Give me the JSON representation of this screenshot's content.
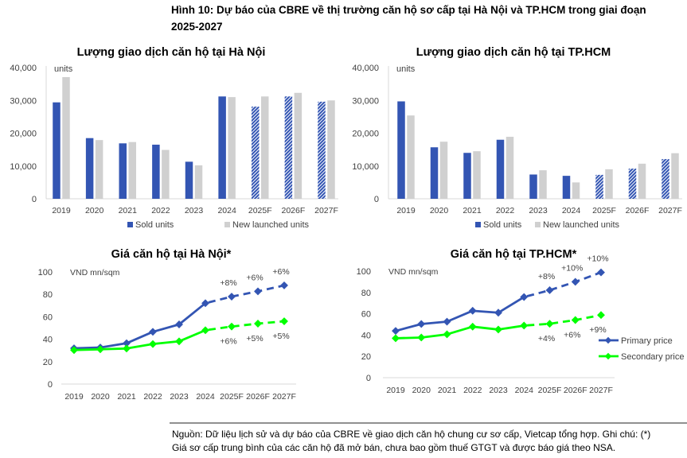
{
  "figure": {
    "title_line1": "Hình 10: Dự báo của CBRE về thị trường căn hộ sơ cấp tại Hà Nội và TP.HCM trong giai đoạn",
    "title_line2": "2025-2027",
    "source_line1": "Nguồn: Dữ liệu lịch sử và dự báo của CBRE về giao dịch căn hộ chung cư sơ cấp, Vietcap tổng hợp. Ghi chú: (*)",
    "source_line2": "Giá sơ cấp trung bình của các căn hộ đã mở bán, chưa bao gồm thuế GTGT và được báo giá theo NSA."
  },
  "colors": {
    "primary": "#3355b3",
    "secondary": "#00ff00",
    "launched": "#d0d0d0",
    "text": "#404040"
  },
  "chart_data": [
    {
      "type": "bar",
      "title": "Lượng giao dịch căn hộ tại Hà Nội",
      "unit_label": "units",
      "categories": [
        "2019",
        "2020",
        "2021",
        "2022",
        "2023",
        "2024",
        "2025F",
        "2026F",
        "2027F"
      ],
      "forecast_from": "2025F",
      "ylim": [
        0,
        40000
      ],
      "yticks": [
        "0",
        "10,000",
        "20,000",
        "30,000",
        "40,000"
      ],
      "legend_position": "bottom",
      "series": [
        {
          "name": "Sold units",
          "values": [
            29400,
            18500,
            16900,
            16500,
            11300,
            31200,
            28100,
            31200,
            29600
          ]
        },
        {
          "name": "New launched units",
          "values": [
            37100,
            17900,
            17300,
            14900,
            10200,
            31000,
            31200,
            32300,
            30000
          ]
        }
      ]
    },
    {
      "type": "bar",
      "title": "Lượng giao dịch căn hộ tại TP.HCM",
      "unit_label": "units",
      "categories": [
        "2019",
        "2020",
        "2021",
        "2022",
        "2023",
        "2024",
        "2025F",
        "2026F",
        "2027F"
      ],
      "forecast_from": "2025F",
      "ylim": [
        0,
        40000
      ],
      "yticks": [
        "0",
        "10,000",
        "20,000",
        "30,000",
        "40,000"
      ],
      "legend_position": "bottom",
      "series": [
        {
          "name": "Sold units",
          "values": [
            29700,
            15700,
            14000,
            18000,
            7400,
            7000,
            7300,
            9200,
            12100
          ]
        },
        {
          "name": "New launched units",
          "values": [
            25400,
            17400,
            14500,
            18900,
            8700,
            5000,
            9000,
            10700,
            13900
          ]
        }
      ]
    },
    {
      "type": "line",
      "title": "Giá căn hộ tại Hà Nội*",
      "unit_label": "VND mn/sqm",
      "categories": [
        "2019",
        "2020",
        "2021",
        "2022",
        "2023",
        "2024",
        "2025F",
        "2026F",
        "2027F"
      ],
      "forecast_from": "2024",
      "ylim": [
        0,
        100
      ],
      "yticks": [
        "0",
        "20",
        "40",
        "60",
        "80",
        "100"
      ],
      "series": [
        {
          "name": "Primary price",
          "values": [
            31.9,
            32.6,
            36.4,
            46.6,
            53.2,
            72.1,
            78.0,
            82.7,
            88.0
          ],
          "annotations": [
            "+8%",
            "+6%",
            "+6%"
          ]
        },
        {
          "name": "Secondary price",
          "values": [
            30.3,
            31.0,
            31.7,
            35.7,
            38.1,
            48.0,
            51.3,
            53.9,
            56.0
          ],
          "annotations": [
            "+6%",
            "+5%",
            "+5%"
          ]
        }
      ]
    },
    {
      "type": "line",
      "title": "Giá căn hộ tại TP.HCM*",
      "unit_label": "VND mn/sqm",
      "categories": [
        "2019",
        "2020",
        "2021",
        "2022",
        "2023",
        "2024",
        "2025F",
        "2026F",
        "2027F"
      ],
      "forecast_from": "2024",
      "ylim": [
        0,
        100
      ],
      "yticks": [
        "0",
        "20",
        "40",
        "60",
        "80",
        "100"
      ],
      "legend_position": "right",
      "series": [
        {
          "name": "Primary price",
          "values": [
            43.9,
            50.4,
            52.6,
            62.8,
            61.0,
            75.7,
            82.1,
            90.0,
            98.8
          ],
          "annotations": [
            "+8%",
            "+10%",
            "+10%"
          ]
        },
        {
          "name": "Secondary price",
          "values": [
            37.0,
            37.7,
            40.7,
            47.9,
            45.2,
            48.9,
            50.6,
            54.1,
            58.8
          ],
          "annotations": [
            "+4%",
            "+6%",
            "+9%"
          ]
        }
      ]
    }
  ]
}
